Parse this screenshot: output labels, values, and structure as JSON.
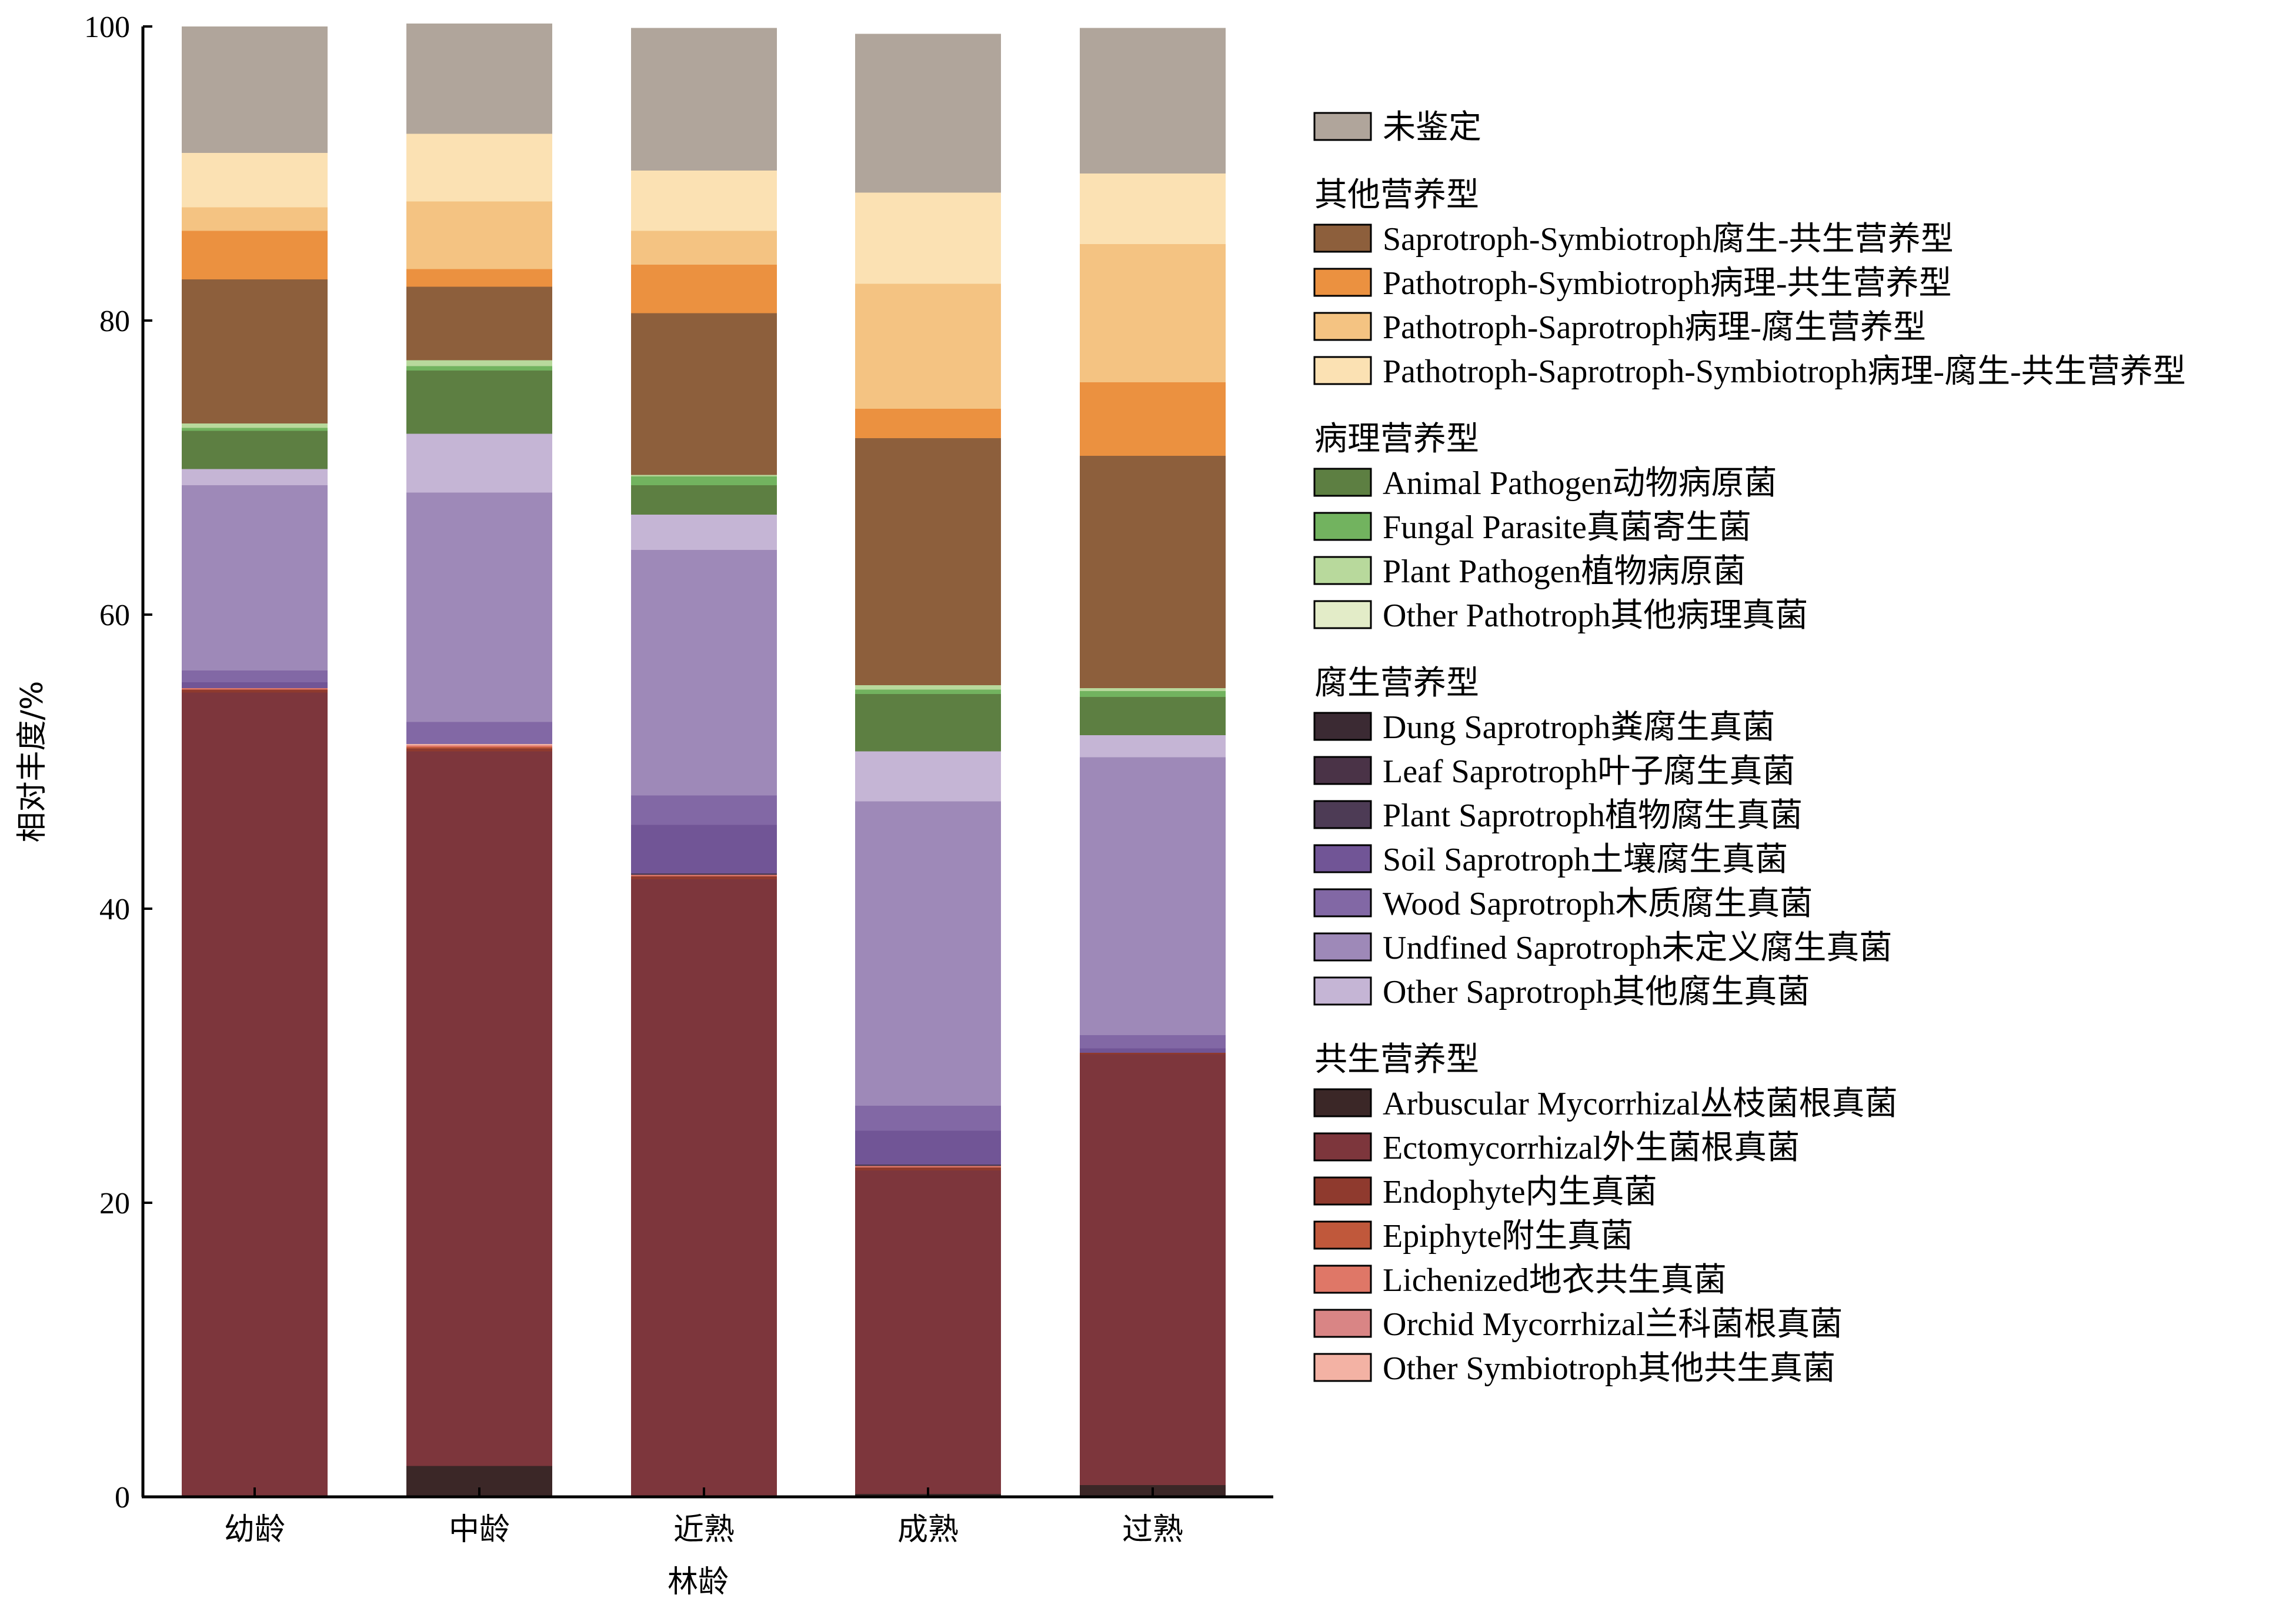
{
  "chart_data": {
    "type": "bar",
    "stacked": true,
    "xlabel": "林龄",
    "ylabel": "相对丰度/%",
    "ylim": [
      0,
      100
    ],
    "yticks": [
      0,
      20,
      40,
      60,
      80,
      100
    ],
    "grid": false,
    "legend_position": "right",
    "categories": [
      "幼龄",
      "中龄",
      "近熟",
      "成熟",
      "过熟"
    ],
    "legend_groups": [
      {
        "title": "",
        "items": [
          "未鉴定"
        ]
      },
      {
        "title": "其他营养型",
        "items": [
          "Saprotroph-Symbiotroph腐生-共生营养型",
          "Pathotroph-Symbiotroph病理-共生营养型",
          "Pathotroph-Saprotroph病理-腐生营养型",
          "Pathotroph-Saprotroph-Symbiotroph病理-腐生-共生营养型"
        ]
      },
      {
        "title": "病理营养型",
        "items": [
          "Animal Pathogen动物病原菌",
          "Fungal Parasite真菌寄生菌",
          "Plant Pathogen植物病原菌",
          "Other Pathotroph其他病理真菌"
        ]
      },
      {
        "title": "腐生营养型",
        "items": [
          "Dung Saprotroph粪腐生真菌",
          "Leaf Saprotroph叶子腐生真菌",
          "Plant Saprotroph植物腐生真菌",
          "Soil Saprotroph土壤腐生真菌",
          "Wood Saprotroph木质腐生真菌",
          "Undfined Saprotroph未定义腐生真菌",
          "Other Saprotroph其他腐生真菌"
        ]
      },
      {
        "title": "共生营养型",
        "items": [
          "Arbuscular Mycorrhizal丛枝菌根真菌",
          "Ectomycorrhizal外生菌根真菌",
          "Endophyte内生真菌",
          "Epiphyte附生真菌",
          "Lichenized地衣共生真菌",
          "Orchid Mycorrhizal兰科菌根真菌",
          "Other Symbiotroph其他共生真菌"
        ]
      }
    ],
    "series": [
      {
        "name": "Arbuscular Mycorrhizal丛枝菌根真菌",
        "color": "#3b2727",
        "values": [
          0.0,
          2.1,
          0.0,
          0.2,
          0.8
        ]
      },
      {
        "name": "Ectomycorrhizal外生菌根真菌",
        "color": "#7d363c",
        "values": [
          54.7,
          48.6,
          42.0,
          22.0,
          29.3
        ]
      },
      {
        "name": "Endophyte内生真菌",
        "color": "#8f3a2e",
        "values": [
          0.2,
          0.2,
          0.2,
          0.2,
          0.1
        ]
      },
      {
        "name": "Epiphyte附生真菌",
        "color": "#c0583b",
        "values": [
          0.0,
          0.1,
          0.0,
          0.0,
          0.0
        ]
      },
      {
        "name": "Lichenized地衣共生真菌",
        "color": "#df7767",
        "values": [
          0.1,
          0.1,
          0.1,
          0.1,
          0.0
        ]
      },
      {
        "name": "Orchid Mycorrhizal兰科菌根真菌",
        "color": "#d98585",
        "values": [
          0.0,
          0.0,
          0.0,
          0.0,
          0.0
        ]
      },
      {
        "name": "Other Symbiotroph其他共生真菌",
        "color": "#f3b2a4",
        "values": [
          0.0,
          0.1,
          0.0,
          0.0,
          0.0
        ]
      },
      {
        "name": "Dung Saprotroph粪腐生真菌",
        "color": "#3b2a33",
        "values": [
          0.0,
          0.0,
          0.0,
          0.0,
          0.0
        ]
      },
      {
        "name": "Leaf Saprotroph叶子腐生真菌",
        "color": "#4a3347",
        "values": [
          0.0,
          0.0,
          0.0,
          0.0,
          0.0
        ]
      },
      {
        "name": "Plant Saprotroph植物腐生真菌",
        "color": "#4d3b55",
        "values": [
          0.0,
          0.0,
          0.1,
          0.1,
          0.0
        ]
      },
      {
        "name": "Soil Saprotroph土壤腐生真菌",
        "color": "#715596",
        "values": [
          0.4,
          0.0,
          3.3,
          2.3,
          0.3
        ]
      },
      {
        "name": "Wood Saprotroph木质腐生真菌",
        "color": "#8268a5",
        "values": [
          0.8,
          1.5,
          2.0,
          1.7,
          0.9
        ]
      },
      {
        "name": "Undfined Saprotroph未定义腐生真菌",
        "color": "#9e89b8",
        "values": [
          12.6,
          15.6,
          16.7,
          20.7,
          18.9
        ]
      },
      {
        "name": "Other Saprotroph其他腐生真菌",
        "color": "#c5b5d5",
        "values": [
          1.1,
          4.0,
          2.4,
          3.4,
          1.5
        ]
      },
      {
        "name": "Animal Pathogen动物病原菌",
        "color": "#5d7f42",
        "values": [
          2.6,
          4.3,
          2.0,
          3.9,
          2.6
        ]
      },
      {
        "name": "Fungal Parasite真菌寄生菌",
        "color": "#72b35f",
        "values": [
          0.2,
          0.3,
          0.6,
          0.3,
          0.4
        ]
      },
      {
        "name": "Plant Pathogen植物病原菌",
        "color": "#b8d99c",
        "values": [
          0.3,
          0.4,
          0.1,
          0.3,
          0.2
        ]
      },
      {
        "name": "Other Pathotroph其他病理真菌",
        "color": "#e3ecc8",
        "values": [
          0.0,
          0.0,
          0.0,
          0.0,
          0.0
        ]
      },
      {
        "name": "Saprotroph-Symbiotroph腐生-共生营养型",
        "color": "#8d5f3c",
        "values": [
          9.8,
          5.0,
          11.0,
          16.8,
          15.8
        ]
      },
      {
        "name": "Pathotroph-Symbiotroph病理-共生营养型",
        "color": "#eb9140",
        "values": [
          3.3,
          1.2,
          3.3,
          2.0,
          5.0
        ]
      },
      {
        "name": "Pathotroph-Saprotroph病理-腐生营养型",
        "color": "#f4c382",
        "values": [
          1.6,
          4.6,
          2.3,
          8.5,
          9.4
        ]
      },
      {
        "name": "Pathotroph-Saprotroph-Symbiotroph病理-腐生-共生营养型",
        "color": "#fbe1b3",
        "values": [
          3.7,
          4.6,
          4.1,
          6.2,
          4.8
        ]
      },
      {
        "name": "未鉴定",
        "color": "#b0a59b",
        "values": [
          8.6,
          7.5,
          9.7,
          10.8,
          9.9
        ]
      }
    ]
  }
}
